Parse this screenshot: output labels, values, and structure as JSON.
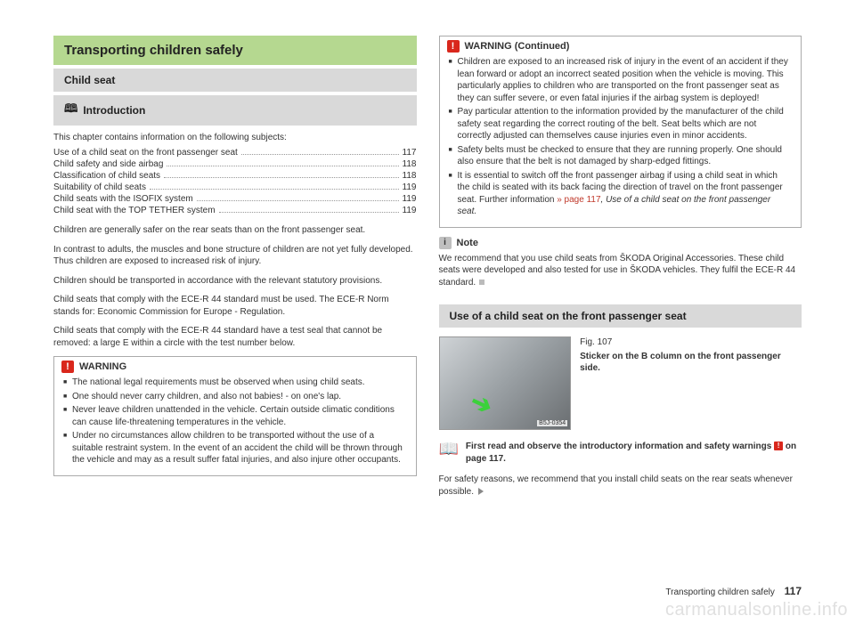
{
  "left": {
    "title_main": "Transporting children safely",
    "title_sub": "Child seat",
    "title_intro": "Introduction",
    "intro_text": "This chapter contains information on the following subjects:",
    "toc": [
      {
        "label": "Use of a child seat on the front passenger seat",
        "page": "117"
      },
      {
        "label": "Child safety and side airbag",
        "page": "118"
      },
      {
        "label": "Classification of child seats",
        "page": "118"
      },
      {
        "label": "Suitability of child seats",
        "page": "119"
      },
      {
        "label": "Child seats with the ISOFIX system",
        "page": "119"
      },
      {
        "label": "Child seat with the TOP TETHER system",
        "page": "119"
      }
    ],
    "p1": "Children are generally safer on the rear seats than on the front passenger seat.",
    "p2": "In contrast to adults, the muscles and bone structure of children are not yet fully developed. Thus children are exposed to increased risk of injury.",
    "p3": "Children should be transported in accordance with the relevant statutory provisions.",
    "p4": "Child seats that comply with the ECE-R 44 standard must be used. The ECE-R Norm stands for: Economic Commission for Europe - Regulation.",
    "p5": "Child seats that comply with the ECE-R 44 standard have a test seal that cannot be removed: a large E within a circle with the test number below.",
    "warning_title": "WARNING",
    "warning_items": [
      "The national legal requirements must be observed when using child seats.",
      "One should never carry children, and also not babies! - on one's lap.",
      "Never leave children unattended in the vehicle. Certain outside climatic conditions can cause life-threatening temperatures in the vehicle.",
      "Under no circumstances allow children to be transported without the use of a suitable restraint system. In the event of an accident the child will be thrown through the vehicle and may as a result suffer fatal injuries, and also injure other occupants."
    ]
  },
  "right": {
    "warning_cont_title": "WARNING (Continued)",
    "warning_cont_items": [
      "Children are exposed to an increased risk of injury in the event of an accident if they lean forward or adopt an incorrect seated position when the vehicle is moving. This particularly applies to children who are transported on the front passenger seat as they can suffer severe, or even fatal injuries if the airbag system is deployed!",
      "Pay particular attention to the information provided by the manufacturer of the child safety seat regarding the correct routing of the belt. Seat belts which are not correctly adjusted can themselves cause injuries even in minor accidents.",
      "Safety belts must be checked to ensure that they are running properly. One should also ensure that the belt is not damaged by sharp-edged fittings.",
      "It is essential to switch off the front passenger airbag if using a child seat in which the child is seated with its back facing the direction of travel on the front passenger seat. Further information "
    ],
    "warning_link": "» page 117",
    "warning_link_after": ", Use of a child seat on the front passenger seat.",
    "note_title": "Note",
    "note_body": "We recommend that you use child seats from ŠKODA Original Accessories. These child seats were developed and also tested for use in ŠKODA vehicles. They fulfil the ECE-R 44 standard.",
    "section_title": "Use of a child seat on the front passenger seat",
    "fig_num": "Fig. 107",
    "fig_caption": "Sticker on the B column on the front passenger side.",
    "fig_tag": "B5J-0354",
    "read_first": "First read and observe the introductory information and safety warnings ",
    "read_first_after": " on page 117.",
    "p_bottom": "For safety reasons, we recommend that you install child seats on the rear seats whenever possible."
  },
  "footer": {
    "label": "Transporting children safely",
    "page": "117"
  },
  "watermark": "carmanualsonline.info",
  "colors": {
    "green_header": "#b5d890",
    "gray_header": "#d9d9d9",
    "warning_red": "#d9271c",
    "link_red": "#c0392b"
  }
}
